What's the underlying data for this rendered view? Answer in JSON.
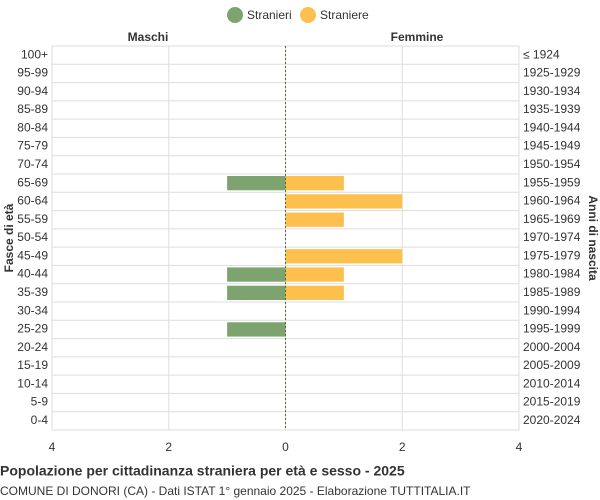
{
  "chart_data": {
    "type": "pyramid",
    "title": "Popolazione per cittadinanza straniera per età e sesso - 2025",
    "subtitle": "COMUNE DI DONORI (CA) - Dati ISTAT 1° gennaio 2025 - Elaborazione TUTTITALIA.IT",
    "left_label": "Maschi",
    "right_label": "Femmine",
    "y_label": "Fasce di età",
    "y2_label": "Anni di nascita",
    "categories": [
      "100+",
      "95-99",
      "90-94",
      "85-89",
      "80-84",
      "75-79",
      "70-74",
      "65-69",
      "60-64",
      "55-59",
      "50-54",
      "45-49",
      "40-44",
      "35-39",
      "30-34",
      "25-29",
      "20-24",
      "15-19",
      "10-14",
      "5-9",
      "0-4"
    ],
    "birth_years": [
      "≤ 1924",
      "1925-1929",
      "1930-1934",
      "1935-1939",
      "1940-1944",
      "1945-1949",
      "1950-1954",
      "1955-1959",
      "1960-1964",
      "1965-1969",
      "1970-1974",
      "1975-1979",
      "1980-1984",
      "1985-1989",
      "1990-1994",
      "1995-1999",
      "2000-2004",
      "2005-2009",
      "2010-2014",
      "2015-2019",
      "2020-2024"
    ],
    "series": [
      {
        "name": "Stranieri",
        "color": "#7da36f",
        "side": "left",
        "values": [
          0,
          0,
          0,
          0,
          0,
          0,
          0,
          1,
          0,
          0,
          0,
          0,
          1,
          1,
          0,
          1,
          0,
          0,
          0,
          0,
          0
        ]
      },
      {
        "name": "Straniere",
        "color": "#fdc04e",
        "side": "right",
        "values": [
          0,
          0,
          0,
          0,
          0,
          0,
          0,
          1,
          2,
          1,
          0,
          2,
          1,
          1,
          0,
          0,
          0,
          0,
          0,
          0,
          0
        ]
      }
    ],
    "xlim": [
      -4,
      4
    ],
    "xticks": [
      {
        "value": -4,
        "label": "4"
      },
      {
        "value": -2,
        "label": "2"
      },
      0,
      2,
      4
    ],
    "grid": true
  }
}
